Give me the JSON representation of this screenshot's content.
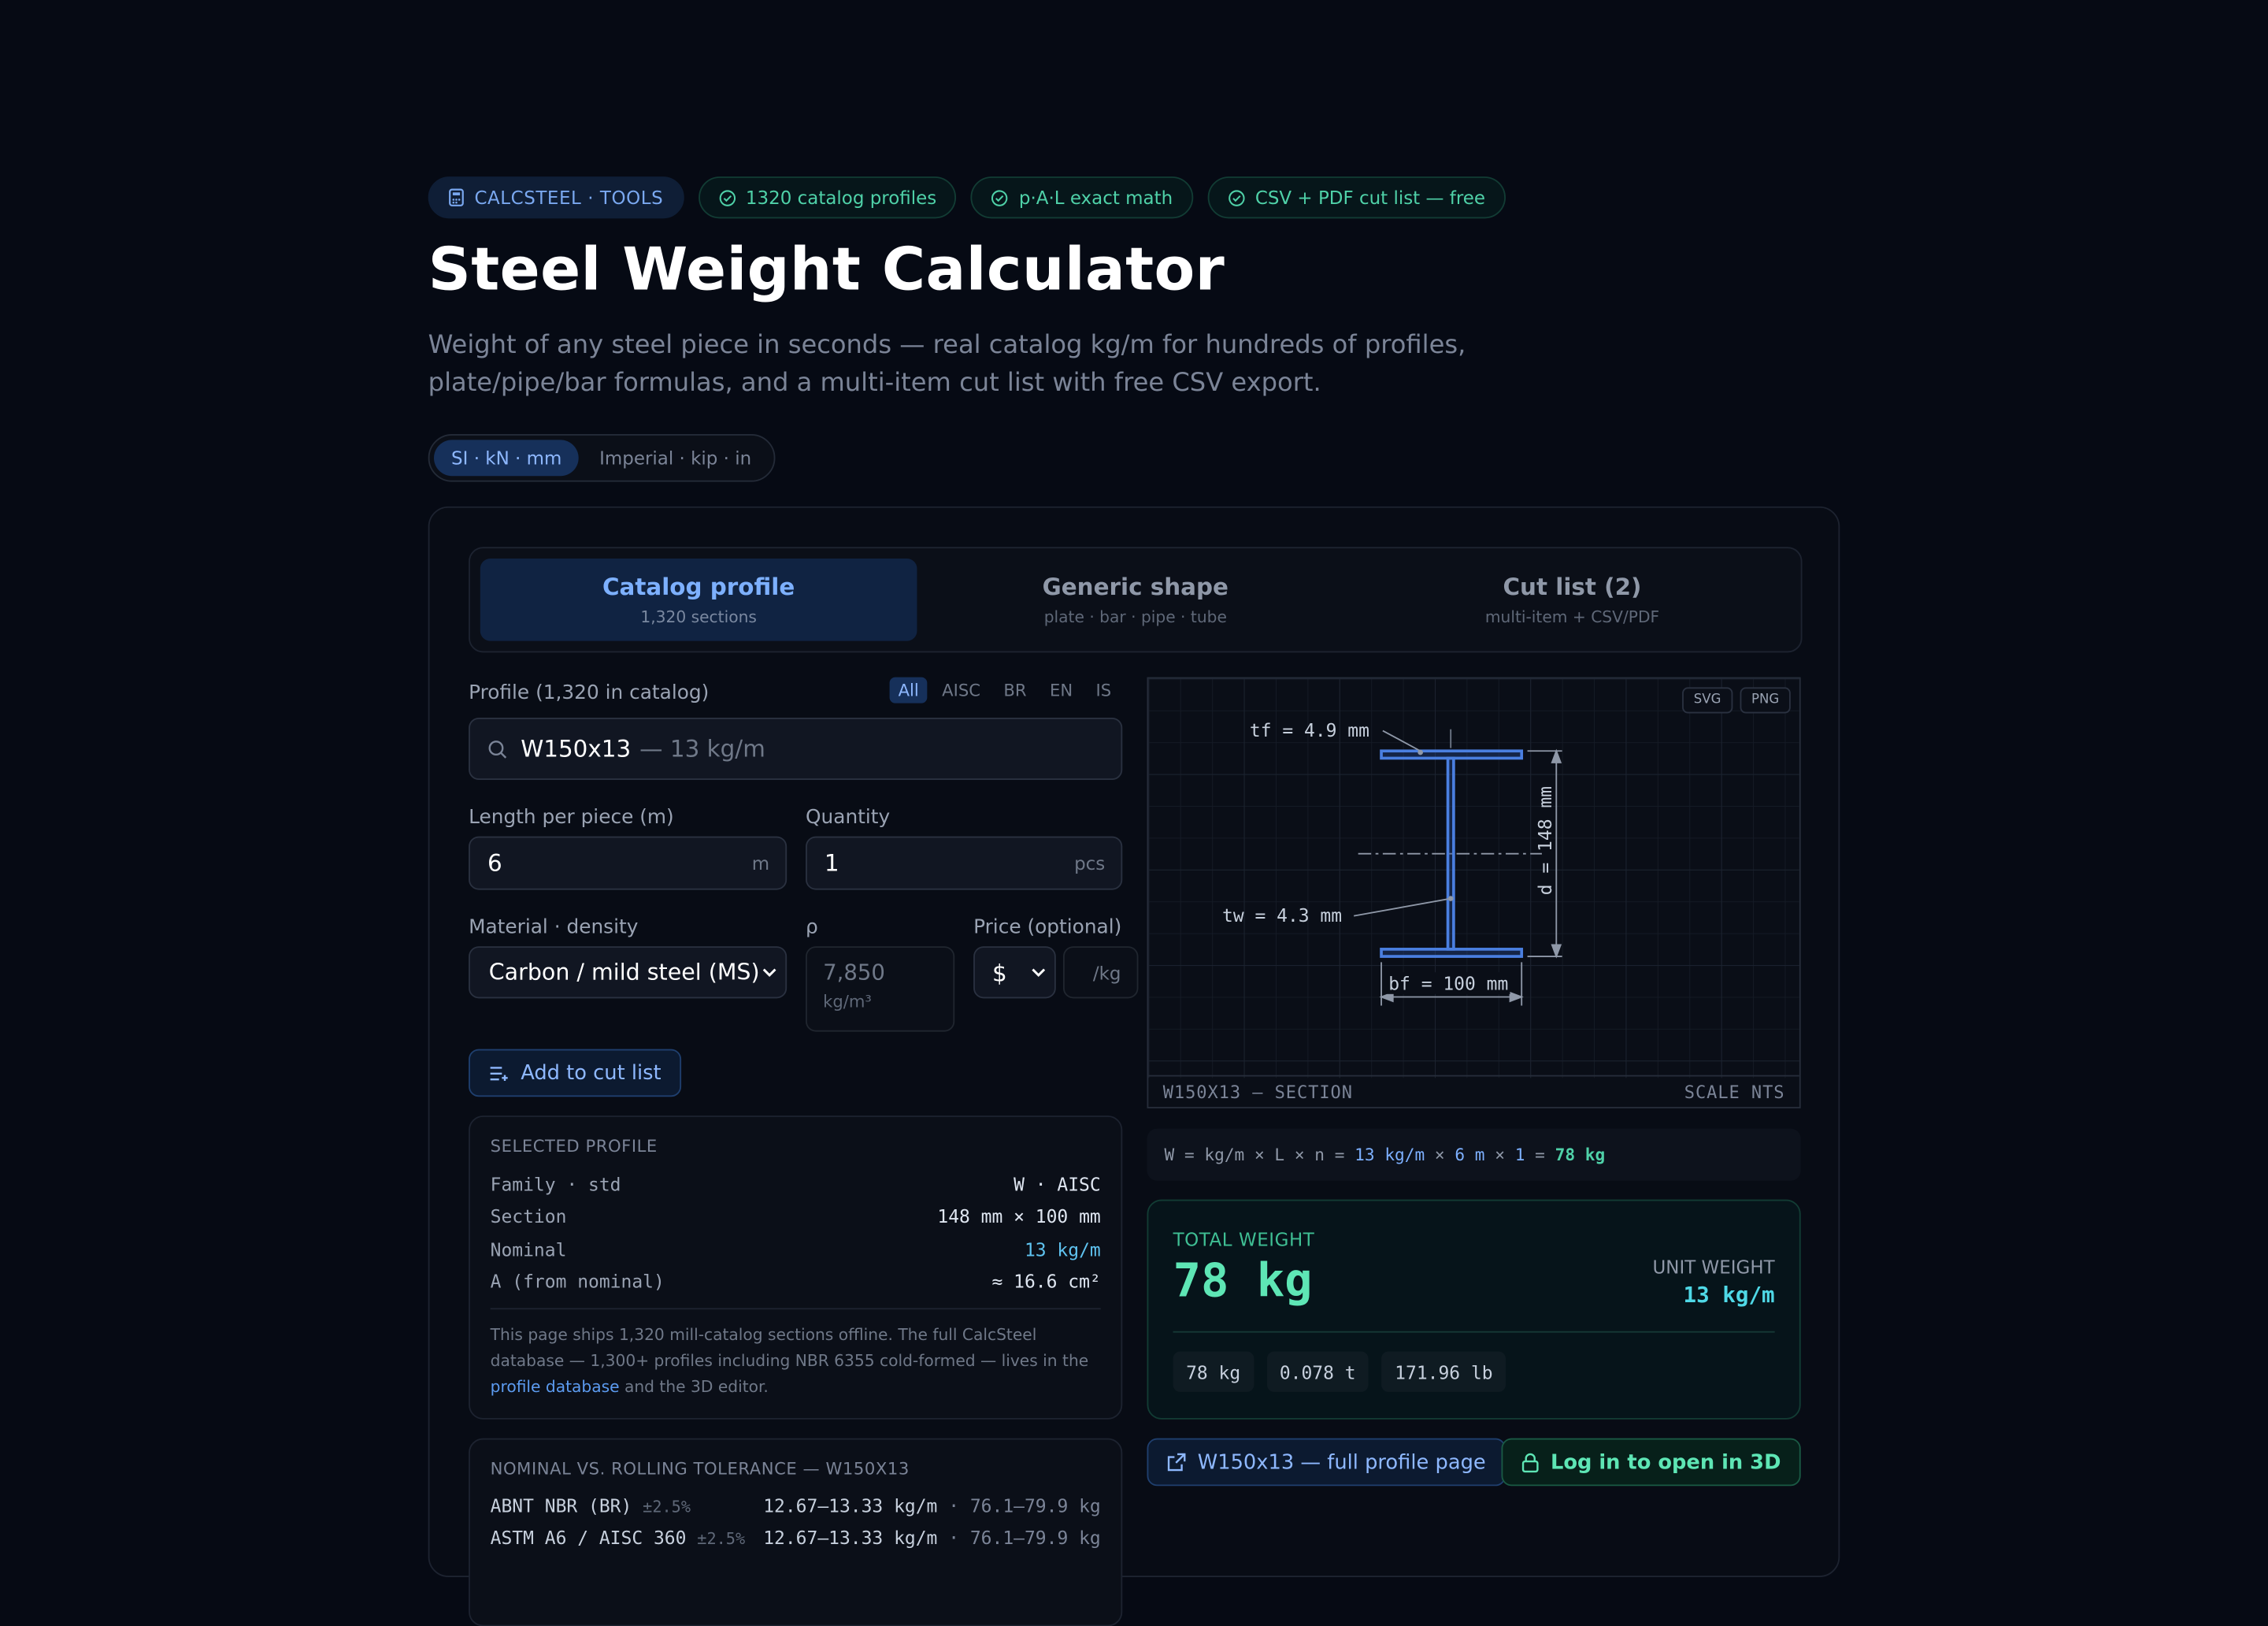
{
  "header": {
    "brand": "CALCSTEEL · TOOLS",
    "badges": [
      "1320 catalog profiles",
      "p·A·L exact math",
      "CSV + PDF cut list — free"
    ],
    "title": "Steel Weight Calculator",
    "subtitle": "Weight of any steel piece in seconds — real catalog kg/m for hundreds of profiles, plate/pipe/bar formulas, and a multi-item cut list with free CSV export."
  },
  "units": {
    "si": "SI · kN · mm",
    "imperial": "Imperial · kip · in",
    "selected": "si"
  },
  "tabs": [
    {
      "label": "Catalog profile",
      "sub": "1,320 sections"
    },
    {
      "label": "Generic shape",
      "sub": "plate · bar · pipe · tube"
    },
    {
      "label": "Cut list (2)",
      "sub": "multi-item + CSV/PDF"
    }
  ],
  "form": {
    "profile_label": "Profile (1,320 in catalog)",
    "std_filters": [
      "All",
      "AISC",
      "BR",
      "EN",
      "IS"
    ],
    "profile_value": "W150x13",
    "profile_hint": "— 13 kg/m",
    "length_label": "Length per piece (m)",
    "length_value": "6",
    "length_unit": "m",
    "qty_label": "Quantity",
    "qty_value": "1",
    "qty_unit": "pcs",
    "material_label": "Material · density",
    "material_value": "Carbon / mild steel (MS)",
    "rho_label": "ρ",
    "rho_value": "7,850",
    "rho_unit": "kg/m³",
    "price_label": "Price (optional)",
    "currency": "$",
    "price_unit": "/kg",
    "add_button": "Add to cut list"
  },
  "selected": {
    "heading": "SELECTED PROFILE",
    "rows": [
      {
        "k": "Family · std",
        "v": "W · AISC"
      },
      {
        "k": "Section",
        "v": "148 mm × 100 mm"
      },
      {
        "k": "Nominal",
        "v": "13 kg/m"
      },
      {
        "k": "A (from nominal)",
        "v": "≈ 16.6 cm²"
      }
    ],
    "note_pre": "This page ships 1,320 mill-catalog sections offline. The full CalcSteel database — 1,300+ profiles including NBR 6355 cold-formed — lives in the ",
    "note_link": "profile database",
    "note_post": " and the 3D editor."
  },
  "tolerance": {
    "heading": "NOMINAL VS. ROLLING TOLERANCE — W150X13",
    "rows": [
      {
        "std": "ABNT NBR (BR)",
        "pct": "±2.5%",
        "kgm": "12.67–13.33 kg/m",
        "kg": "· 76.1–79.9 kg"
      },
      {
        "std": "ASTM A6 / AISC 360",
        "pct": "±2.5%",
        "kgm": "12.67–13.33 kg/m",
        "kg": "· 76.1–79.9 kg"
      }
    ]
  },
  "drawing": {
    "export": [
      "SVG",
      "PNG"
    ],
    "tf": "tf = 4.9 mm",
    "tw": "tw = 4.3 mm",
    "d": "d = 148 mm",
    "bf": "bf = 100 mm",
    "caption": "W150X13 — SECTION",
    "scale": "SCALE NTS"
  },
  "formula": {
    "pre": "W = kg/m × L × n = ",
    "kgm": "13 kg/m",
    "x1": " × ",
    "len": "6 m",
    "x2": " × ",
    "n": "1",
    "eq": " = ",
    "res": "78 kg"
  },
  "result": {
    "total_label": "TOTAL WEIGHT",
    "total": "78 kg",
    "unit_label": "UNIT WEIGHT",
    "unit": "13 kg/m",
    "chips": [
      "78 kg",
      "0.078 t",
      "171.96 lb"
    ]
  },
  "links": {
    "profile_page": "W150x13 — full profile page",
    "open3d": "Log in to open in 3D"
  },
  "colors": {
    "bg": "#060a14",
    "accent": "#7db0ff",
    "ok": "#5ee6b5",
    "beam": "#4a7fe0"
  }
}
